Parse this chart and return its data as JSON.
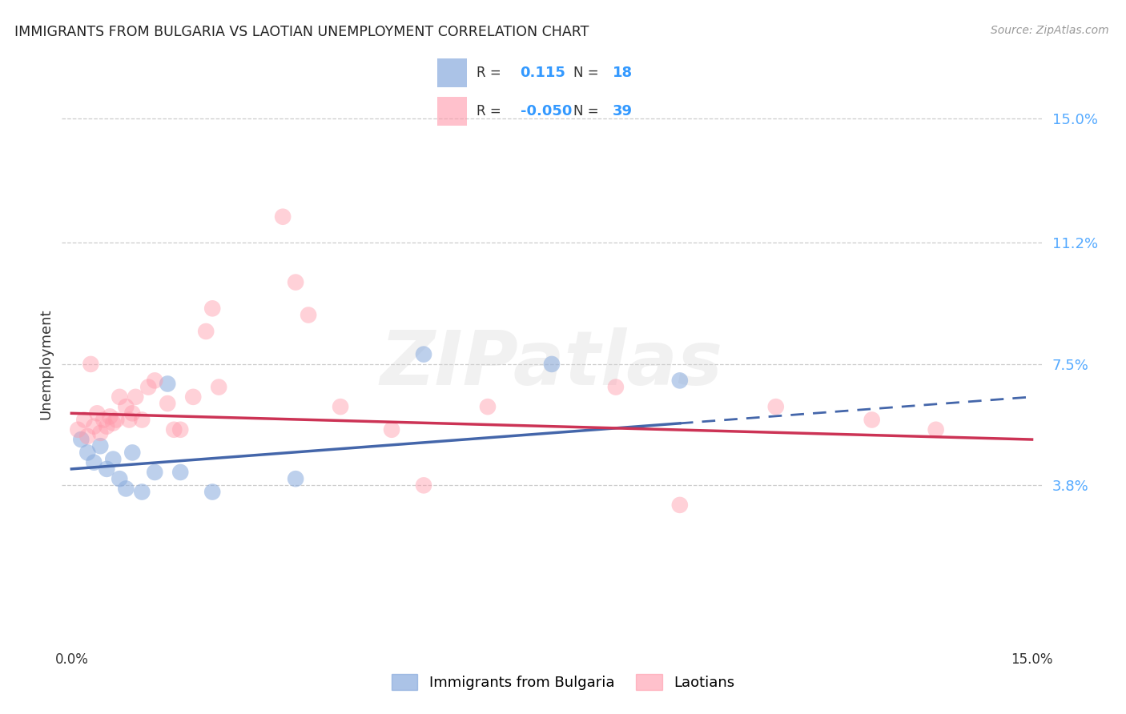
{
  "title": "IMMIGRANTS FROM BULGARIA VS LAOTIAN UNEMPLOYMENT CORRELATION CHART",
  "source": "Source: ZipAtlas.com",
  "ylabel": "Unemployment",
  "xlim": [
    0.0,
    15.0
  ],
  "ylim": [
    0.0,
    15.5
  ],
  "yticks": [
    3.8,
    7.5,
    11.2,
    15.0
  ],
  "ytick_labels": [
    "3.8%",
    "7.5%",
    "11.2%",
    "15.0%"
  ],
  "legend_R_blue": "0.115",
  "legend_N_blue": "18",
  "legend_R_pink": "-0.050",
  "legend_N_pink": "39",
  "legend_label_blue": "Immigrants from Bulgaria",
  "legend_label_pink": "Laotians",
  "blue_color": "#88AADD",
  "blue_line_color": "#4466AA",
  "pink_color": "#FF99AA",
  "pink_line_color": "#CC3355",
  "blue_alpha": 0.55,
  "pink_alpha": 0.45,
  "background_color": "#ffffff",
  "grid_color": "#cccccc",
  "blue_scatter_x": [
    0.15,
    0.25,
    0.35,
    0.45,
    0.55,
    0.65,
    0.75,
    0.85,
    0.95,
    1.1,
    1.3,
    1.5,
    1.7,
    2.2,
    3.5,
    5.5,
    7.5,
    9.5
  ],
  "blue_scatter_y": [
    5.2,
    4.8,
    4.5,
    5.0,
    4.3,
    4.6,
    4.0,
    3.7,
    4.8,
    3.6,
    4.2,
    6.9,
    4.2,
    3.6,
    4.0,
    7.8,
    7.5,
    7.0
  ],
  "pink_scatter_x": [
    0.1,
    0.2,
    0.25,
    0.3,
    0.35,
    0.4,
    0.45,
    0.5,
    0.55,
    0.6,
    0.65,
    0.7,
    0.75,
    0.85,
    0.9,
    0.95,
    1.0,
    1.1,
    1.2,
    1.3,
    1.5,
    1.6,
    1.7,
    1.9,
    2.1,
    2.2,
    2.3,
    3.3,
    3.5,
    3.7,
    4.2,
    5.0,
    5.5,
    6.5,
    8.5,
    9.5,
    11.0,
    12.5,
    13.5
  ],
  "pink_scatter_y": [
    5.5,
    5.8,
    5.3,
    7.5,
    5.6,
    6.0,
    5.4,
    5.8,
    5.6,
    5.9,
    5.7,
    5.8,
    6.5,
    6.2,
    5.8,
    6.0,
    6.5,
    5.8,
    6.8,
    7.0,
    6.3,
    5.5,
    5.5,
    6.5,
    8.5,
    9.2,
    6.8,
    12.0,
    10.0,
    9.0,
    6.2,
    5.5,
    3.8,
    6.2,
    6.8,
    3.2,
    6.2,
    5.8,
    5.5
  ],
  "blue_trend_start_x": 0.0,
  "blue_trend_end_solid_x": 9.5,
  "blue_trend_end_x": 15.0,
  "blue_trend_start_y": 4.3,
  "blue_trend_end_y": 6.5,
  "pink_trend_start_x": 0.0,
  "pink_trend_end_x": 15.0,
  "pink_trend_start_y": 6.0,
  "pink_trend_end_y": 5.2
}
